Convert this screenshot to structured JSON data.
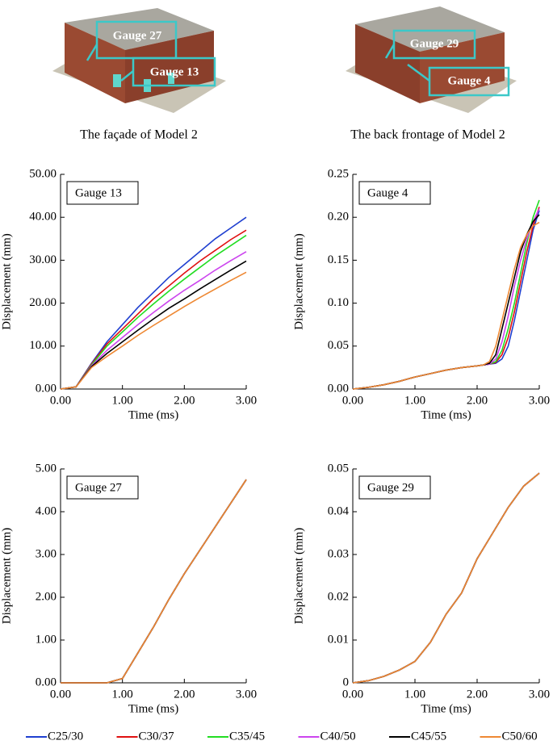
{
  "illustrations": [
    {
      "caption": "The façade of Model 2",
      "gauges": [
        "Gauge 27",
        "Gauge 13"
      ]
    },
    {
      "caption": "The back frontage of Model 2",
      "gauges": [
        "Gauge 29",
        "Gauge 4"
      ]
    }
  ],
  "legend": [
    {
      "name": "C25/30",
      "color": "#1f3fd0"
    },
    {
      "name": "C30/37",
      "color": "#e01010"
    },
    {
      "name": "C35/45",
      "color": "#22dd22"
    },
    {
      "name": "C40/50",
      "color": "#cc44ee"
    },
    {
      "name": "C45/55",
      "color": "#000000"
    },
    {
      "name": "C50/60",
      "color": "#ee8833"
    }
  ],
  "chart_data": [
    {
      "type": "line",
      "annotation": "Gauge 13",
      "x_label": "Time (ms)",
      "y_label": "Displacement (mm)",
      "x": [
        0,
        0.25,
        0.5,
        0.75,
        1,
        1.25,
        1.5,
        1.75,
        2,
        2.25,
        2.5,
        2.75,
        3
      ],
      "xlim": [
        0,
        3
      ],
      "xticks": [
        {
          "value": 0,
          "label": "0.00"
        },
        {
          "value": 1,
          "label": "1.00"
        },
        {
          "value": 2,
          "label": "2.00"
        },
        {
          "value": 3,
          "label": "3.00"
        }
      ],
      "ylim": [
        0,
        50
      ],
      "yticks": [
        {
          "value": 0,
          "label": "0.00"
        },
        {
          "value": 10,
          "label": "10.00"
        },
        {
          "value": 20,
          "label": "20.00"
        },
        {
          "value": 30,
          "label": "30.00"
        },
        {
          "value": 40,
          "label": "40.00"
        },
        {
          "value": 50,
          "label": "50.00"
        }
      ],
      "series": [
        {
          "values": [
            0,
            0.5,
            6,
            11,
            15,
            19,
            22.5,
            26,
            29,
            32,
            35,
            37.5,
            40
          ]
        },
        {
          "values": [
            0,
            0.5,
            5.8,
            10.5,
            14,
            17.5,
            21,
            24,
            27,
            29.8,
            32.3,
            34.8,
            37
          ]
        },
        {
          "values": [
            0,
            0.5,
            5.6,
            10,
            13.3,
            16.7,
            19.8,
            22.8,
            25.6,
            28.3,
            31,
            33.4,
            35.8
          ]
        },
        {
          "values": [
            0,
            0.5,
            5.4,
            9,
            12,
            15,
            17.8,
            20.5,
            23,
            25.3,
            27.7,
            29.9,
            32
          ]
        },
        {
          "values": [
            0,
            0.5,
            5.2,
            8.3,
            11,
            13.7,
            16.3,
            18.8,
            21,
            23.3,
            25.5,
            27.7,
            29.8
          ]
        },
        {
          "values": [
            0,
            0.5,
            5,
            7.6,
            10,
            12.5,
            14.8,
            17,
            19.2,
            21.3,
            23.3,
            25.3,
            27.2
          ]
        }
      ]
    },
    {
      "type": "line",
      "annotation": "Gauge 4",
      "x_label": "Time (ms)",
      "y_label": "Displacement (mm)",
      "x": [
        0,
        0.25,
        0.5,
        0.75,
        1,
        1.25,
        1.5,
        1.75,
        2,
        2.1,
        2.2,
        2.3,
        2.4,
        2.5,
        2.6,
        2.7,
        2.8,
        2.9,
        3
      ],
      "xlim": [
        0,
        3
      ],
      "xticks": [
        {
          "value": 0,
          "label": "0.00"
        },
        {
          "value": 1,
          "label": "1.00"
        },
        {
          "value": 2,
          "label": "2.00"
        },
        {
          "value": 3,
          "label": "3.00"
        }
      ],
      "ylim": [
        0,
        0.25
      ],
      "yticks": [
        {
          "value": 0,
          "label": "0.00"
        },
        {
          "value": 0.05,
          "label": "0.05"
        },
        {
          "value": 0.1,
          "label": "0.10"
        },
        {
          "value": 0.15,
          "label": "0.15"
        },
        {
          "value": 0.2,
          "label": "0.20"
        },
        {
          "value": 0.25,
          "label": "0.25"
        }
      ],
      "series": [
        {
          "values": [
            0,
            0.002,
            0.005,
            0.009,
            0.014,
            0.018,
            0.022,
            0.025,
            0.027,
            0.028,
            0.029,
            0.03,
            0.035,
            0.05,
            0.08,
            0.115,
            0.15,
            0.185,
            0.208
          ]
        },
        {
          "values": [
            0,
            0.002,
            0.005,
            0.009,
            0.014,
            0.018,
            0.022,
            0.025,
            0.027,
            0.028,
            0.029,
            0.031,
            0.04,
            0.06,
            0.09,
            0.125,
            0.16,
            0.19,
            0.212
          ]
        },
        {
          "values": [
            0,
            0.002,
            0.005,
            0.009,
            0.014,
            0.018,
            0.022,
            0.025,
            0.027,
            0.028,
            0.029,
            0.032,
            0.045,
            0.07,
            0.1,
            0.135,
            0.17,
            0.2,
            0.22
          ]
        },
        {
          "values": [
            0,
            0.002,
            0.005,
            0.009,
            0.014,
            0.018,
            0.022,
            0.025,
            0.027,
            0.028,
            0.029,
            0.035,
            0.055,
            0.085,
            0.12,
            0.15,
            0.175,
            0.195,
            0.21
          ]
        },
        {
          "values": [
            0,
            0.002,
            0.005,
            0.009,
            0.014,
            0.018,
            0.022,
            0.025,
            0.027,
            0.028,
            0.03,
            0.04,
            0.07,
            0.1,
            0.13,
            0.16,
            0.18,
            0.195,
            0.203
          ]
        },
        {
          "values": [
            0,
            0.002,
            0.005,
            0.009,
            0.014,
            0.018,
            0.022,
            0.025,
            0.027,
            0.028,
            0.032,
            0.05,
            0.08,
            0.11,
            0.14,
            0.165,
            0.18,
            0.19,
            0.194
          ]
        }
      ]
    },
    {
      "type": "line",
      "annotation": "Gauge 27",
      "x_label": "Time (ms)",
      "y_label": "Displacement (mm)",
      "x": [
        0,
        0.25,
        0.5,
        0.75,
        1,
        1.25,
        1.5,
        1.75,
        2,
        2.25,
        2.5,
        2.75,
        3
      ],
      "xlim": [
        0,
        3
      ],
      "xticks": [
        {
          "value": 0,
          "label": "0.00"
        },
        {
          "value": 1,
          "label": "1.00"
        },
        {
          "value": 2,
          "label": "2.00"
        },
        {
          "value": 3,
          "label": "3.00"
        }
      ],
      "ylim": [
        0,
        5
      ],
      "yticks": [
        {
          "value": 0,
          "label": "0.00"
        },
        {
          "value": 1,
          "label": "1.00"
        },
        {
          "value": 2,
          "label": "2.00"
        },
        {
          "value": 3,
          "label": "3.00"
        },
        {
          "value": 4,
          "label": "4.00"
        },
        {
          "value": 5,
          "label": "5.00"
        }
      ],
      "series": [
        {
          "values": [
            0,
            0,
            0,
            0,
            0.1,
            0.7,
            1.3,
            1.95,
            2.55,
            3.1,
            3.65,
            4.2,
            4.75
          ]
        },
        {
          "values": [
            0,
            0,
            0,
            0,
            0.1,
            0.7,
            1.3,
            1.95,
            2.55,
            3.1,
            3.65,
            4.2,
            4.75
          ]
        },
        {
          "values": [
            0,
            0,
            0,
            0,
            0.1,
            0.7,
            1.3,
            1.95,
            2.55,
            3.1,
            3.65,
            4.2,
            4.75
          ]
        },
        {
          "values": [
            0,
            0,
            0,
            0,
            0.1,
            0.7,
            1.3,
            1.95,
            2.55,
            3.1,
            3.65,
            4.2,
            4.75
          ]
        },
        {
          "values": [
            0,
            0,
            0,
            0,
            0.1,
            0.7,
            1.3,
            1.95,
            2.55,
            3.1,
            3.65,
            4.2,
            4.75
          ]
        },
        {
          "values": [
            0,
            0,
            0,
            0,
            0.1,
            0.7,
            1.3,
            1.95,
            2.55,
            3.1,
            3.65,
            4.2,
            4.75
          ]
        }
      ]
    },
    {
      "type": "line",
      "annotation": "Gauge 29",
      "x_label": "Time (ms)",
      "y_label": "Displacement (mm)",
      "x": [
        0,
        0.25,
        0.5,
        0.75,
        1,
        1.25,
        1.5,
        1.75,
        2,
        2.25,
        2.5,
        2.75,
        3
      ],
      "xlim": [
        0,
        3
      ],
      "xticks": [
        {
          "value": 0,
          "label": "0.00"
        },
        {
          "value": 1,
          "label": "1.00"
        },
        {
          "value": 2,
          "label": "2.00"
        },
        {
          "value": 3,
          "label": "3.00"
        }
      ],
      "ylim": [
        0,
        0.05
      ],
      "yticks": [
        0,
        0.01,
        0.02,
        0.03,
        0.04,
        0.05
      ],
      "series": [
        {
          "values": [
            0,
            0.0005,
            0.0015,
            0.003,
            0.005,
            0.0095,
            0.016,
            0.021,
            0.029,
            0.035,
            0.041,
            0.046,
            0.049
          ]
        },
        {
          "values": [
            0,
            0.0005,
            0.0015,
            0.003,
            0.005,
            0.0095,
            0.016,
            0.021,
            0.029,
            0.035,
            0.041,
            0.046,
            0.049
          ]
        },
        {
          "values": [
            0,
            0.0005,
            0.0015,
            0.003,
            0.005,
            0.0095,
            0.016,
            0.021,
            0.029,
            0.035,
            0.041,
            0.046,
            0.049
          ]
        },
        {
          "values": [
            0,
            0.0005,
            0.0015,
            0.003,
            0.005,
            0.0095,
            0.016,
            0.021,
            0.029,
            0.035,
            0.041,
            0.046,
            0.049
          ]
        },
        {
          "values": [
            0,
            0.0005,
            0.0015,
            0.003,
            0.005,
            0.0095,
            0.016,
            0.021,
            0.029,
            0.035,
            0.041,
            0.046,
            0.049
          ]
        },
        {
          "values": [
            0,
            0.0005,
            0.0015,
            0.003,
            0.005,
            0.0095,
            0.016,
            0.021,
            0.029,
            0.035,
            0.041,
            0.046,
            0.049
          ]
        }
      ]
    }
  ]
}
